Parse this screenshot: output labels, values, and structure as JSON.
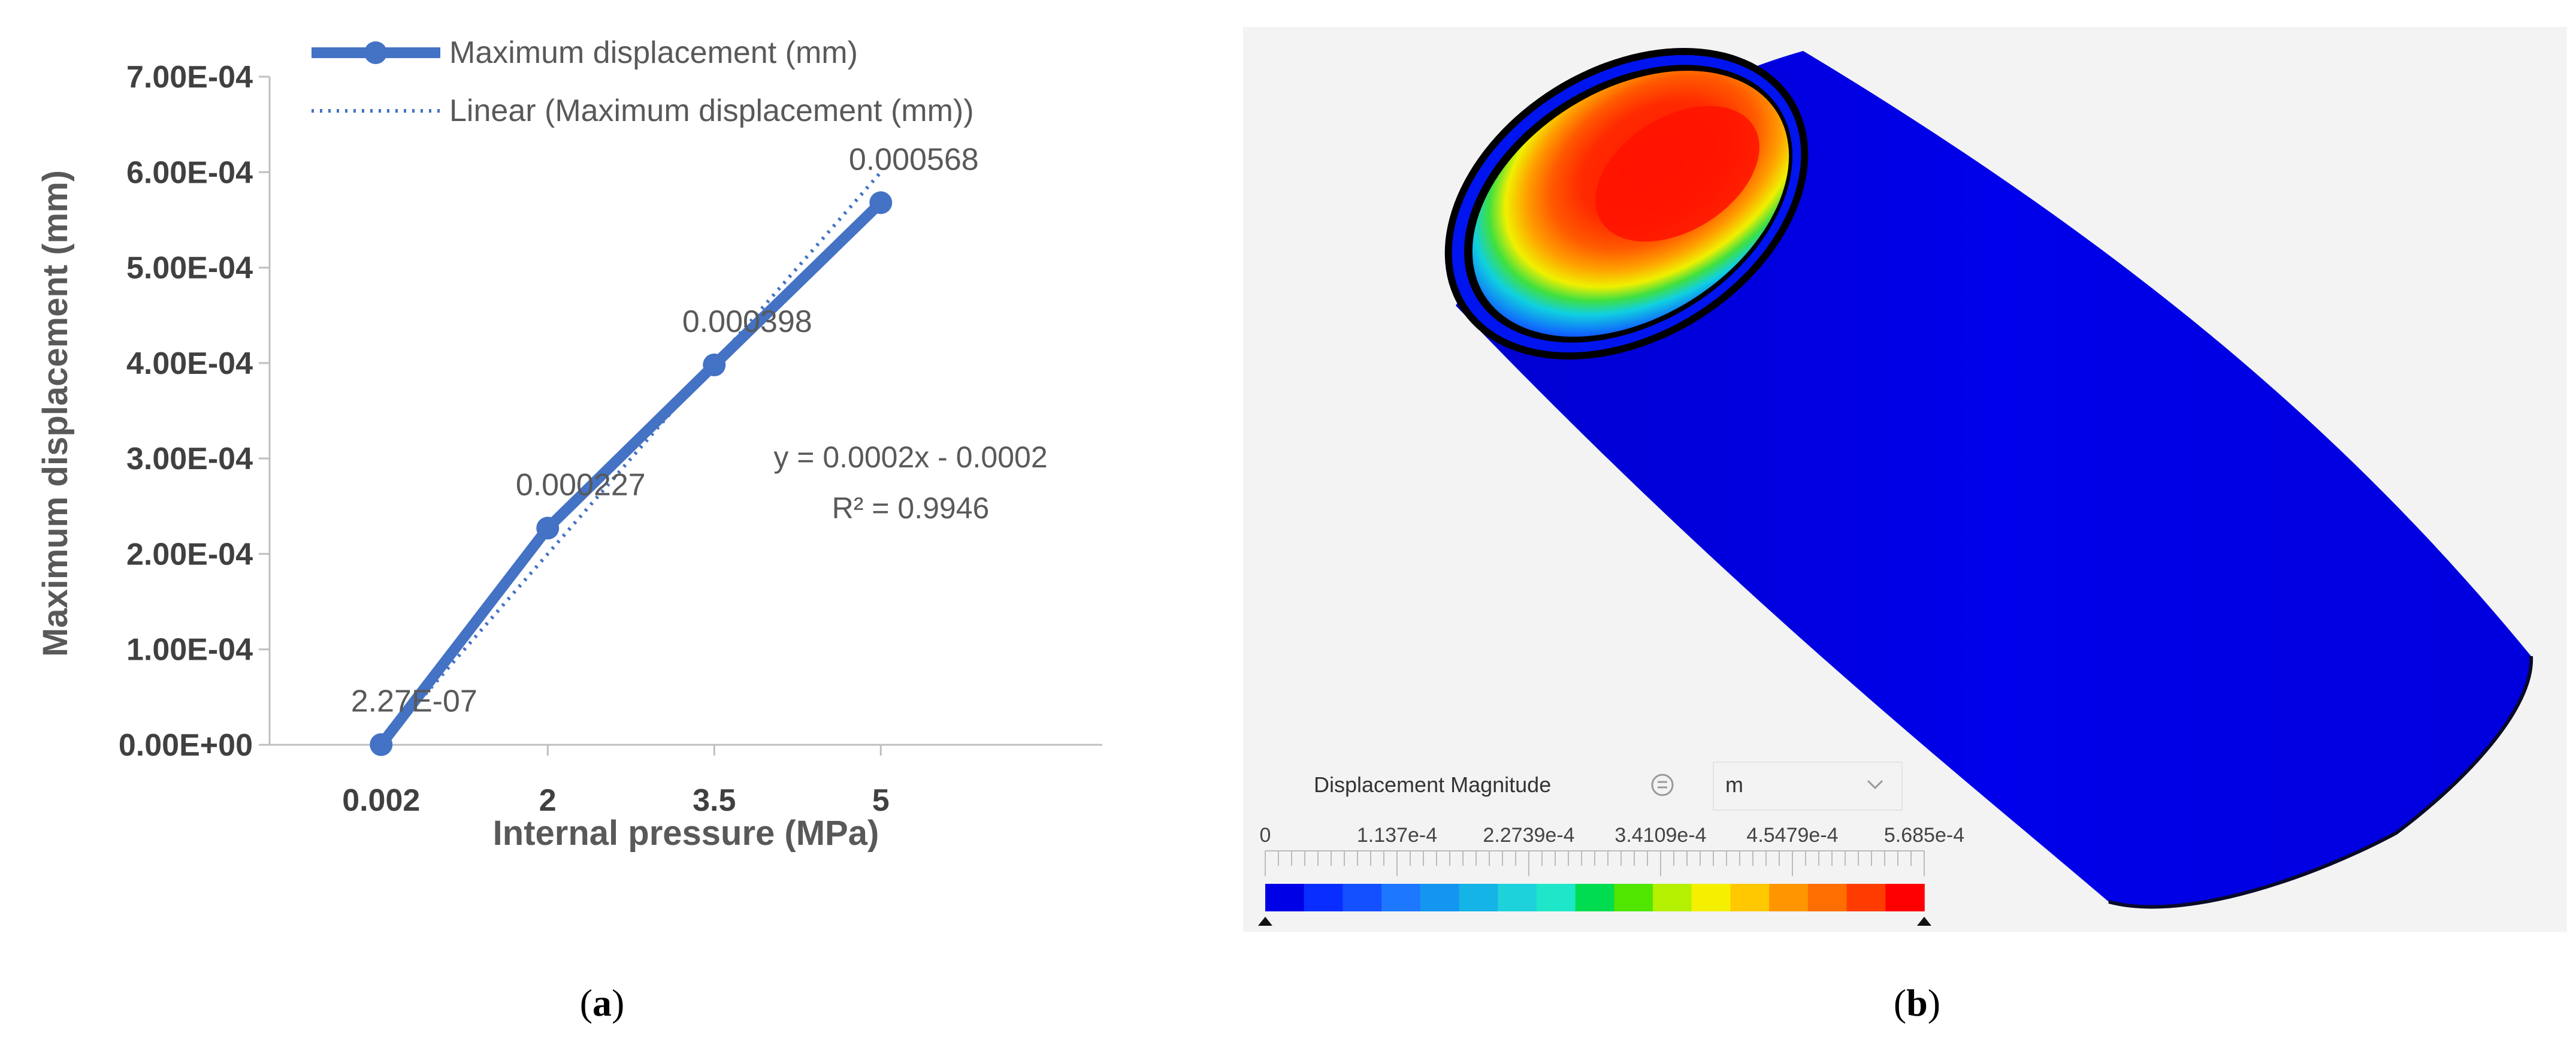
{
  "chart_data": {
    "type": "line",
    "xlabel": "Internal pressure (MPa)",
    "ylabel": "Maximum displacement (mm)",
    "categories": [
      "0.002",
      "2",
      "3.5",
      "5"
    ],
    "series": [
      {
        "name": "Maximum displacement (mm)",
        "values": [
          2.27e-07,
          0.000227,
          0.000398,
          0.000568
        ],
        "style": "line-markers"
      },
      {
        "name": "Linear (Maximum displacement (mm))",
        "values": [
          0.0,
          0.0002,
          0.0004,
          0.0006
        ],
        "style": "dotted-trendline"
      }
    ],
    "data_labels": [
      "2.27E-07",
      "0.000227",
      "0.000398",
      "0.000568"
    ],
    "ylim": [
      0,
      0.0007
    ],
    "yticks": [
      0,
      0.0001,
      0.0002,
      0.0003,
      0.0004,
      0.0005,
      0.0006,
      0.0007
    ],
    "ytick_labels": [
      "0.00E+00",
      "1.00E-04",
      "2.00E-04",
      "3.00E-04",
      "4.00E-04",
      "5.00E-04",
      "6.00E-04",
      "7.00E-04"
    ],
    "legend_position": "top",
    "equation": "y = 0.0002x - 0.0002",
    "r_squared": "R² = 0.9946",
    "colors": {
      "series": "#4472C4",
      "trend": "#4472C4",
      "axis": "#bfbfbf",
      "text": "#595959"
    }
  },
  "panel_b": {
    "legend_title": "Displacement Magnitude",
    "unit": "m",
    "colorbar_ticks": [
      "0",
      "1.137e-4",
      "2.2739e-4",
      "3.4109e-4",
      "4.5479e-4",
      "5.685e-4"
    ],
    "colorbar_colors": [
      "#0000e6",
      "#0a2dff",
      "#1450ff",
      "#1e78ff",
      "#1496f0",
      "#14b4e6",
      "#1ed2dc",
      "#1ee6c8",
      "#00dc50",
      "#50e600",
      "#b4f000",
      "#f5f000",
      "#ffc800",
      "#ff9600",
      "#ff6e00",
      "#ff3c00",
      "#ff0000"
    ],
    "pipe_color": "#0000e6"
  },
  "captions": {
    "a_letter": "a",
    "b_letter": "b",
    "open": "(",
    "close": ")"
  }
}
